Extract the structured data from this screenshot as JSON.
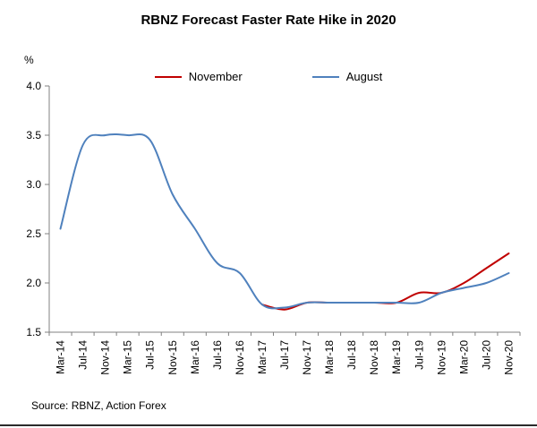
{
  "title": "RBNZ Forecast Faster Rate Hike in 2020",
  "source": "Source: RBNZ, Action Forex",
  "chart_data": {
    "type": "line",
    "title": "RBNZ Forecast Faster Rate Hike in 2020",
    "xlabel": "",
    "ylabel": "%",
    "ylim": [
      1.5,
      4.0
    ],
    "ytick_step": 0.5,
    "grid": false,
    "legend_position": "top",
    "axis_color": "#808080",
    "text_color": "#000000",
    "categories": [
      "Mar-14",
      "Jul-14",
      "Nov-14",
      "Mar-15",
      "Jul-15",
      "Nov-15",
      "Mar-16",
      "Jul-16",
      "Nov-16",
      "Mar-17",
      "Jul-17",
      "Nov-17",
      "Mar-18",
      "Jul-18",
      "Nov-18",
      "Mar-19",
      "Jul-19",
      "Nov-19",
      "Mar-20",
      "Jul-20",
      "Nov-20"
    ],
    "series": [
      {
        "name": "November",
        "color": "#C00000",
        "values": [
          null,
          null,
          null,
          null,
          null,
          null,
          null,
          null,
          null,
          1.78,
          1.73,
          1.8,
          1.8,
          1.8,
          1.8,
          1.8,
          1.9,
          1.9,
          2.0,
          2.15,
          2.3
        ]
      },
      {
        "name": "August",
        "color": "#4F81BD",
        "values": [
          2.55,
          3.4,
          3.5,
          3.5,
          3.45,
          2.9,
          2.55,
          2.2,
          2.1,
          1.78,
          1.75,
          1.8,
          1.8,
          1.8,
          1.8,
          1.8,
          1.8,
          1.9,
          1.95,
          2.0,
          2.1
        ]
      }
    ]
  }
}
